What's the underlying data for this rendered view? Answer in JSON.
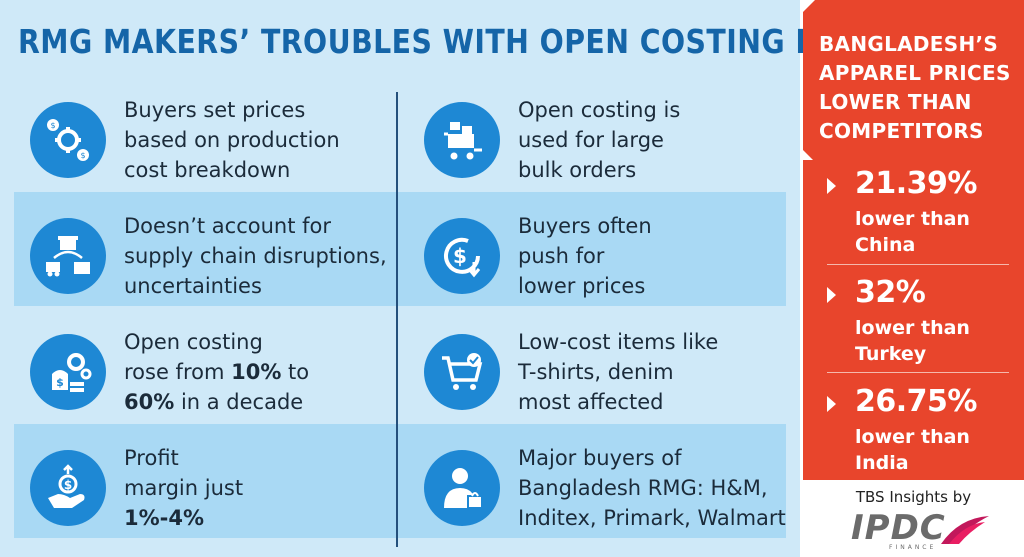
{
  "headline": "RMG MAKERS’ TROUBLES WITH OPEN COSTING METHOD",
  "items": [
    {
      "icon": "money-gears-icon",
      "lines": [
        "Buyers set prices",
        "based on production",
        "cost breakdown"
      ]
    },
    {
      "icon": "cart-boxes-icon",
      "lines": [
        "Open costing is",
        "used for large",
        "bulk orders"
      ]
    },
    {
      "icon": "supply-chain-icon",
      "lines": [
        "Doesn’t account for",
        "supply chain disruptions,",
        "uncertainties"
      ]
    },
    {
      "icon": "dollar-down-icon",
      "lines": [
        "Buyers often",
        "push for",
        "lower prices"
      ]
    },
    {
      "icon": "money-gear-icon",
      "line1": "Open costing",
      "line2_pre": "rose from ",
      "line2_bold": "10%",
      "line2_post": " to",
      "line3_bold": "60%",
      "line3_post": " in a decade"
    },
    {
      "icon": "shopping-cart-check-icon",
      "lines": [
        "Low-cost items like",
        "T-shirts, denim",
        "most affected"
      ]
    },
    {
      "icon": "hand-dollar-icon",
      "line1": "Profit",
      "line2": "margin just",
      "line3_bold": "1%-4%"
    },
    {
      "icon": "buyer-bag-icon",
      "lines": [
        "Major buyers of",
        "Bangladesh RMG: H&M,",
        "Inditex, Primark, Walmart"
      ]
    }
  ],
  "sidebar": {
    "title": "BANGLADESH’S APPAREL PRICES LOWER THAN COMPETITORS",
    "stats": [
      {
        "value": "21.39%",
        "label": "lower than China"
      },
      {
        "value": "32%",
        "label": "lower than Turkey"
      },
      {
        "value": "26.75%",
        "label": "lower than India"
      }
    ],
    "credit": "TBS Insights by",
    "logo_text": "IPDC",
    "logo_sub": "FINANCE"
  },
  "colors": {
    "panel_bg": "#cfe9f8",
    "band": "#a9d9f4",
    "headline": "#1565a8",
    "icon_circle": "#1e88d4",
    "sidebar_red": "#e8452c"
  }
}
